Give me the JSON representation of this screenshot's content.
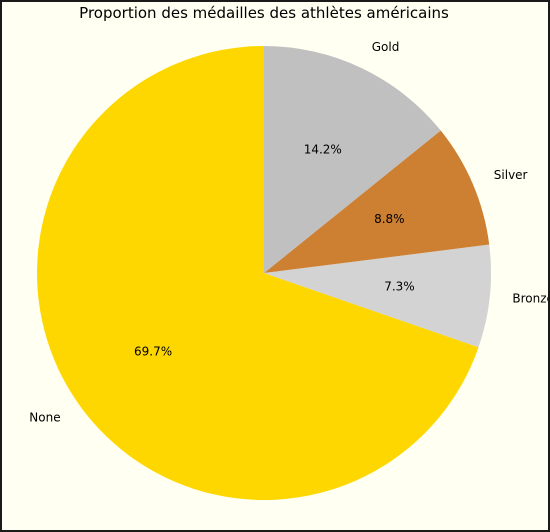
{
  "chart_data": {
    "type": "pie",
    "title": "Proportion des médailles des athlètes américains",
    "categories": [
      "None",
      "Bronze",
      "Silver",
      "Gold"
    ],
    "values": [
      69.7,
      7.3,
      8.8,
      14.2
    ],
    "value_labels": [
      "69.7%",
      "7.3%",
      "8.8%",
      "14.2%"
    ],
    "colors": [
      "#ffd700",
      "#d3d3d3",
      "#cd7f32",
      "#c0c0c0"
    ],
    "start_angle_deg": 90,
    "direction": "counterclockwise",
    "legend": "none"
  }
}
